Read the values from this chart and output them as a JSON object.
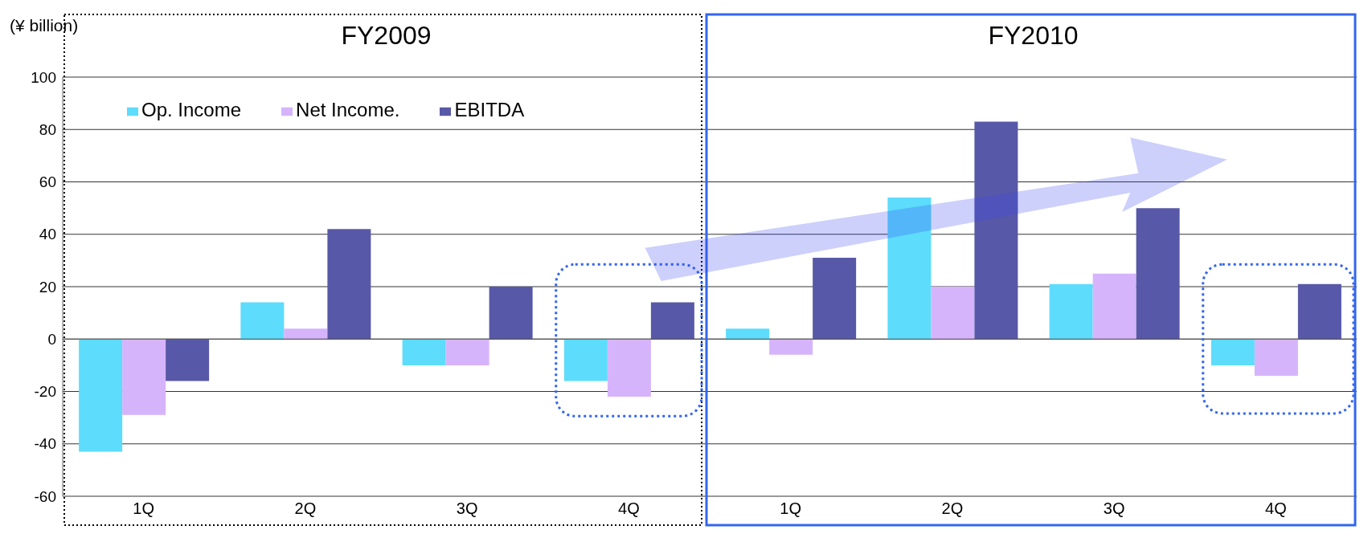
{
  "chart_data": {
    "type": "bar",
    "ylabel": "(¥ billion)",
    "annotations": [
      "FY2009",
      "FY2010"
    ],
    "categories": [
      "1Q",
      "2Q",
      "3Q",
      "4Q",
      "1Q",
      "2Q",
      "3Q",
      "4Q"
    ],
    "series": [
      {
        "name": "Op. Income",
        "color": "#5ddcfc",
        "values": [
          -43,
          14,
          -10,
          -16,
          4,
          54,
          21,
          -10
        ]
      },
      {
        "name": "Net Income.",
        "color": "#d6b4fc",
        "values": [
          -29,
          4,
          -10,
          -22,
          -6,
          20,
          25,
          -14
        ]
      },
      {
        "name": "EBITDA",
        "color": "#5858a8",
        "values": [
          -16,
          42,
          20,
          14,
          31,
          83,
          50,
          21
        ]
      }
    ],
    "ylim": [
      -60,
      100
    ],
    "yticks": [
      -60,
      -40,
      -20,
      0,
      20,
      40,
      60,
      80,
      100
    ],
    "grid": "y",
    "legend": "top left"
  }
}
